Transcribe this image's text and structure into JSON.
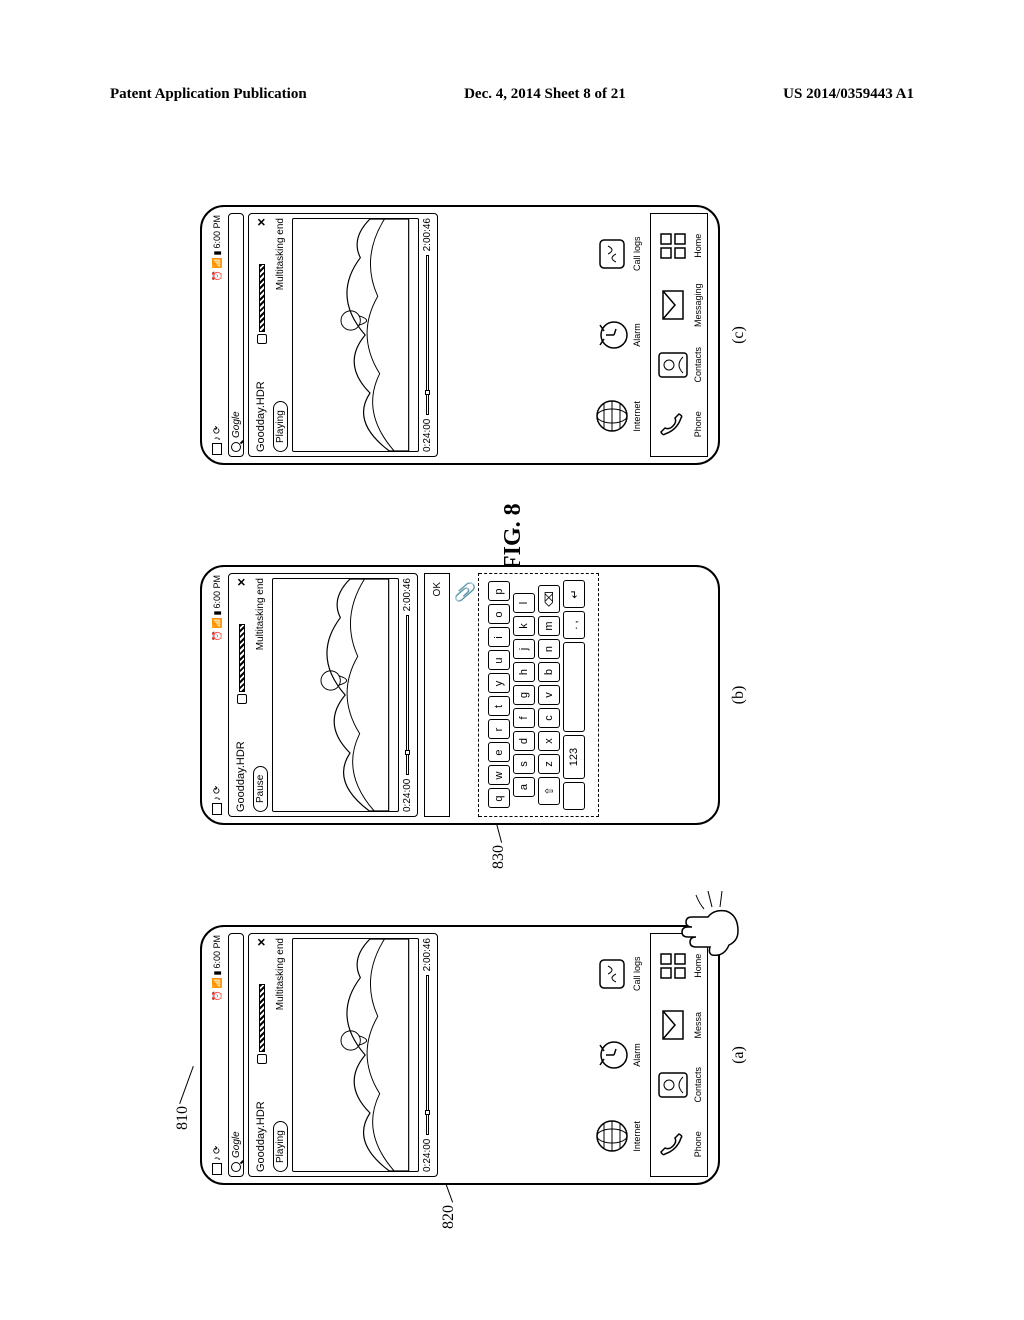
{
  "header": {
    "left": "Patent Application Publication",
    "center": "Dec. 4, 2014   Sheet 8 of 21",
    "right": "US 2014/0359443 A1"
  },
  "figure_label": "FIG. 8",
  "refs": {
    "r810": "810",
    "r820": "820",
    "r830": "830"
  },
  "sublabels": {
    "a": "(a)",
    "b": "(b)",
    "c": "(c)"
  },
  "common": {
    "time": "6:00 PM",
    "search_text": "Gogle",
    "video_title": "Goodday.HDR",
    "multitask_end": "Multitasking end",
    "t_start": "0:24:00",
    "t_end": "2:00:46",
    "btn_ok": "OK"
  },
  "phone_a": {
    "play_state": "Playing"
  },
  "phone_b": {
    "play_state": "Pause"
  },
  "phone_c": {
    "play_state": "Playing"
  },
  "apps_row1": {
    "internet": "Internet",
    "alarm": "Alarm",
    "call_logs": "Call logs"
  },
  "dock": {
    "phone": "Phone",
    "contacts": "Contacts",
    "messaging": "Messaging",
    "messaging_short": "Messa",
    "home": "Home"
  },
  "keyboard": {
    "row1": [
      "q",
      "w",
      "e",
      "r",
      "t",
      "y",
      "u",
      "i",
      "o",
      "p"
    ],
    "row2": [
      "a",
      "s",
      "d",
      "f",
      "g",
      "h",
      "j",
      "k",
      "l"
    ],
    "row3_mid": [
      "z",
      "x",
      "c",
      "v",
      "b",
      "n",
      "m"
    ],
    "num_key": "123",
    "period": ". ,"
  }
}
